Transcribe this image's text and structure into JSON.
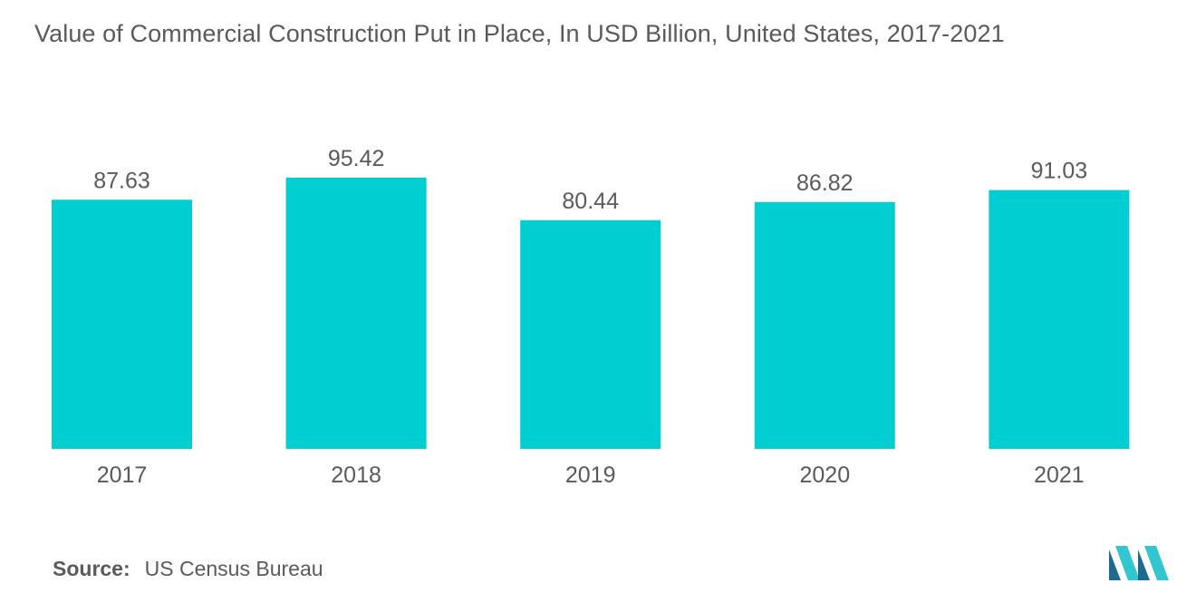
{
  "chart_data": {
    "type": "bar",
    "title": "Value of Commercial Construction Put in Place, In USD Billion, United States, 2017-2021",
    "categories": [
      "2017",
      "2018",
      "2019",
      "2020",
      "2021"
    ],
    "values": [
      87.63,
      95.42,
      80.44,
      86.82,
      91.03
    ],
    "value_labels": [
      "87.63",
      "95.42",
      "80.44",
      "86.82",
      "91.03"
    ],
    "xlabel": "",
    "ylabel": "",
    "ylim": [
      0,
      100
    ],
    "grid": false,
    "legend": "none",
    "bar_color": "#00ced1"
  },
  "source": {
    "label": "Source:",
    "text": "US Census Bureau"
  },
  "colors": {
    "bar": "#00ced1",
    "text": "#5a5a5a",
    "logo_dark": "#1f6b8f",
    "logo_light": "#33c6d0"
  }
}
